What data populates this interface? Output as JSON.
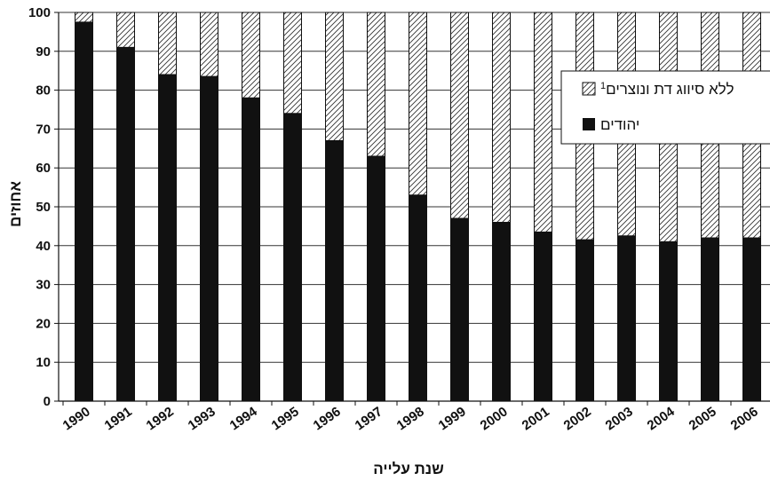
{
  "chart_data": {
    "type": "bar",
    "stacked": true,
    "categories": [
      "1990",
      "1991",
      "1992",
      "1993",
      "1994",
      "1995",
      "1996",
      "1997",
      "1998",
      "1999",
      "2000",
      "2001",
      "2002",
      "2003",
      "2004",
      "2005",
      "2006"
    ],
    "series": [
      {
        "name": "יהודים",
        "values": [
          97.5,
          91,
          84,
          83.5,
          78,
          74,
          67,
          63,
          53,
          47,
          46,
          43.5,
          41.5,
          42.5,
          41,
          42,
          42
        ],
        "fill": "solid",
        "color": "#111111"
      },
      {
        "name": "ללא סיווג דת ונוצרים",
        "name_superscript": "1",
        "values": [
          2.5,
          9,
          16,
          16.5,
          22,
          26,
          33,
          37,
          47,
          53,
          54,
          56.5,
          58.5,
          57.5,
          59,
          58,
          58
        ],
        "fill": "hatched",
        "color": "#333333"
      }
    ],
    "ylim": [
      0,
      100
    ],
    "yticks": [
      0,
      10,
      20,
      30,
      40,
      50,
      60,
      70,
      80,
      90,
      100
    ],
    "ylabel": "אחוזים",
    "xlabel": "שנת עלייה",
    "grid": true,
    "legend_position": "top-right"
  }
}
